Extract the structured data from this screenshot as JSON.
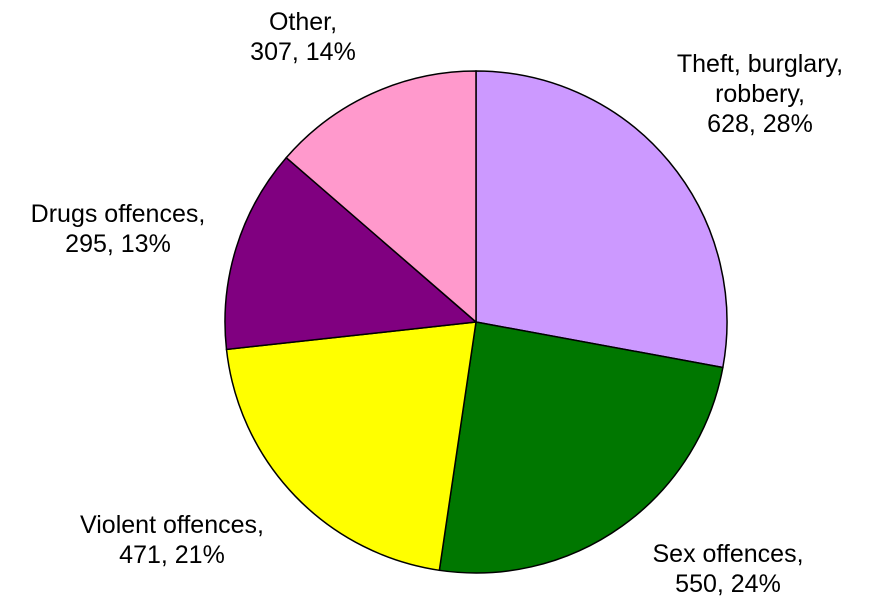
{
  "chart_data": {
    "type": "pie",
    "title": "",
    "start_angle_deg": 0,
    "direction": "clockwise",
    "slices": [
      {
        "category": "Theft, burglary, robbery",
        "label_lines": [
          "Theft, burglary,",
          "robbery,",
          "628, 28%"
        ],
        "value": 628,
        "percent": 28,
        "color": "#CC99FF"
      },
      {
        "category": "Sex offences",
        "label_lines": [
          "Sex offences,",
          "550, 24%"
        ],
        "value": 550,
        "percent": 24,
        "color": "#007700"
      },
      {
        "category": "Violent offences",
        "label_lines": [
          "Violent offences,",
          "471, 21%"
        ],
        "value": 471,
        "percent": 21,
        "color": "#FFFF00"
      },
      {
        "category": "Drugs offences",
        "label_lines": [
          "Drugs offences,",
          "295, 13%"
        ],
        "value": 295,
        "percent": 13,
        "color": "#800080"
      },
      {
        "category": "Other",
        "label_lines": [
          "Other,",
          "307, 14%"
        ],
        "value": 307,
        "percent": 14,
        "color": "#FF99CC"
      }
    ]
  }
}
